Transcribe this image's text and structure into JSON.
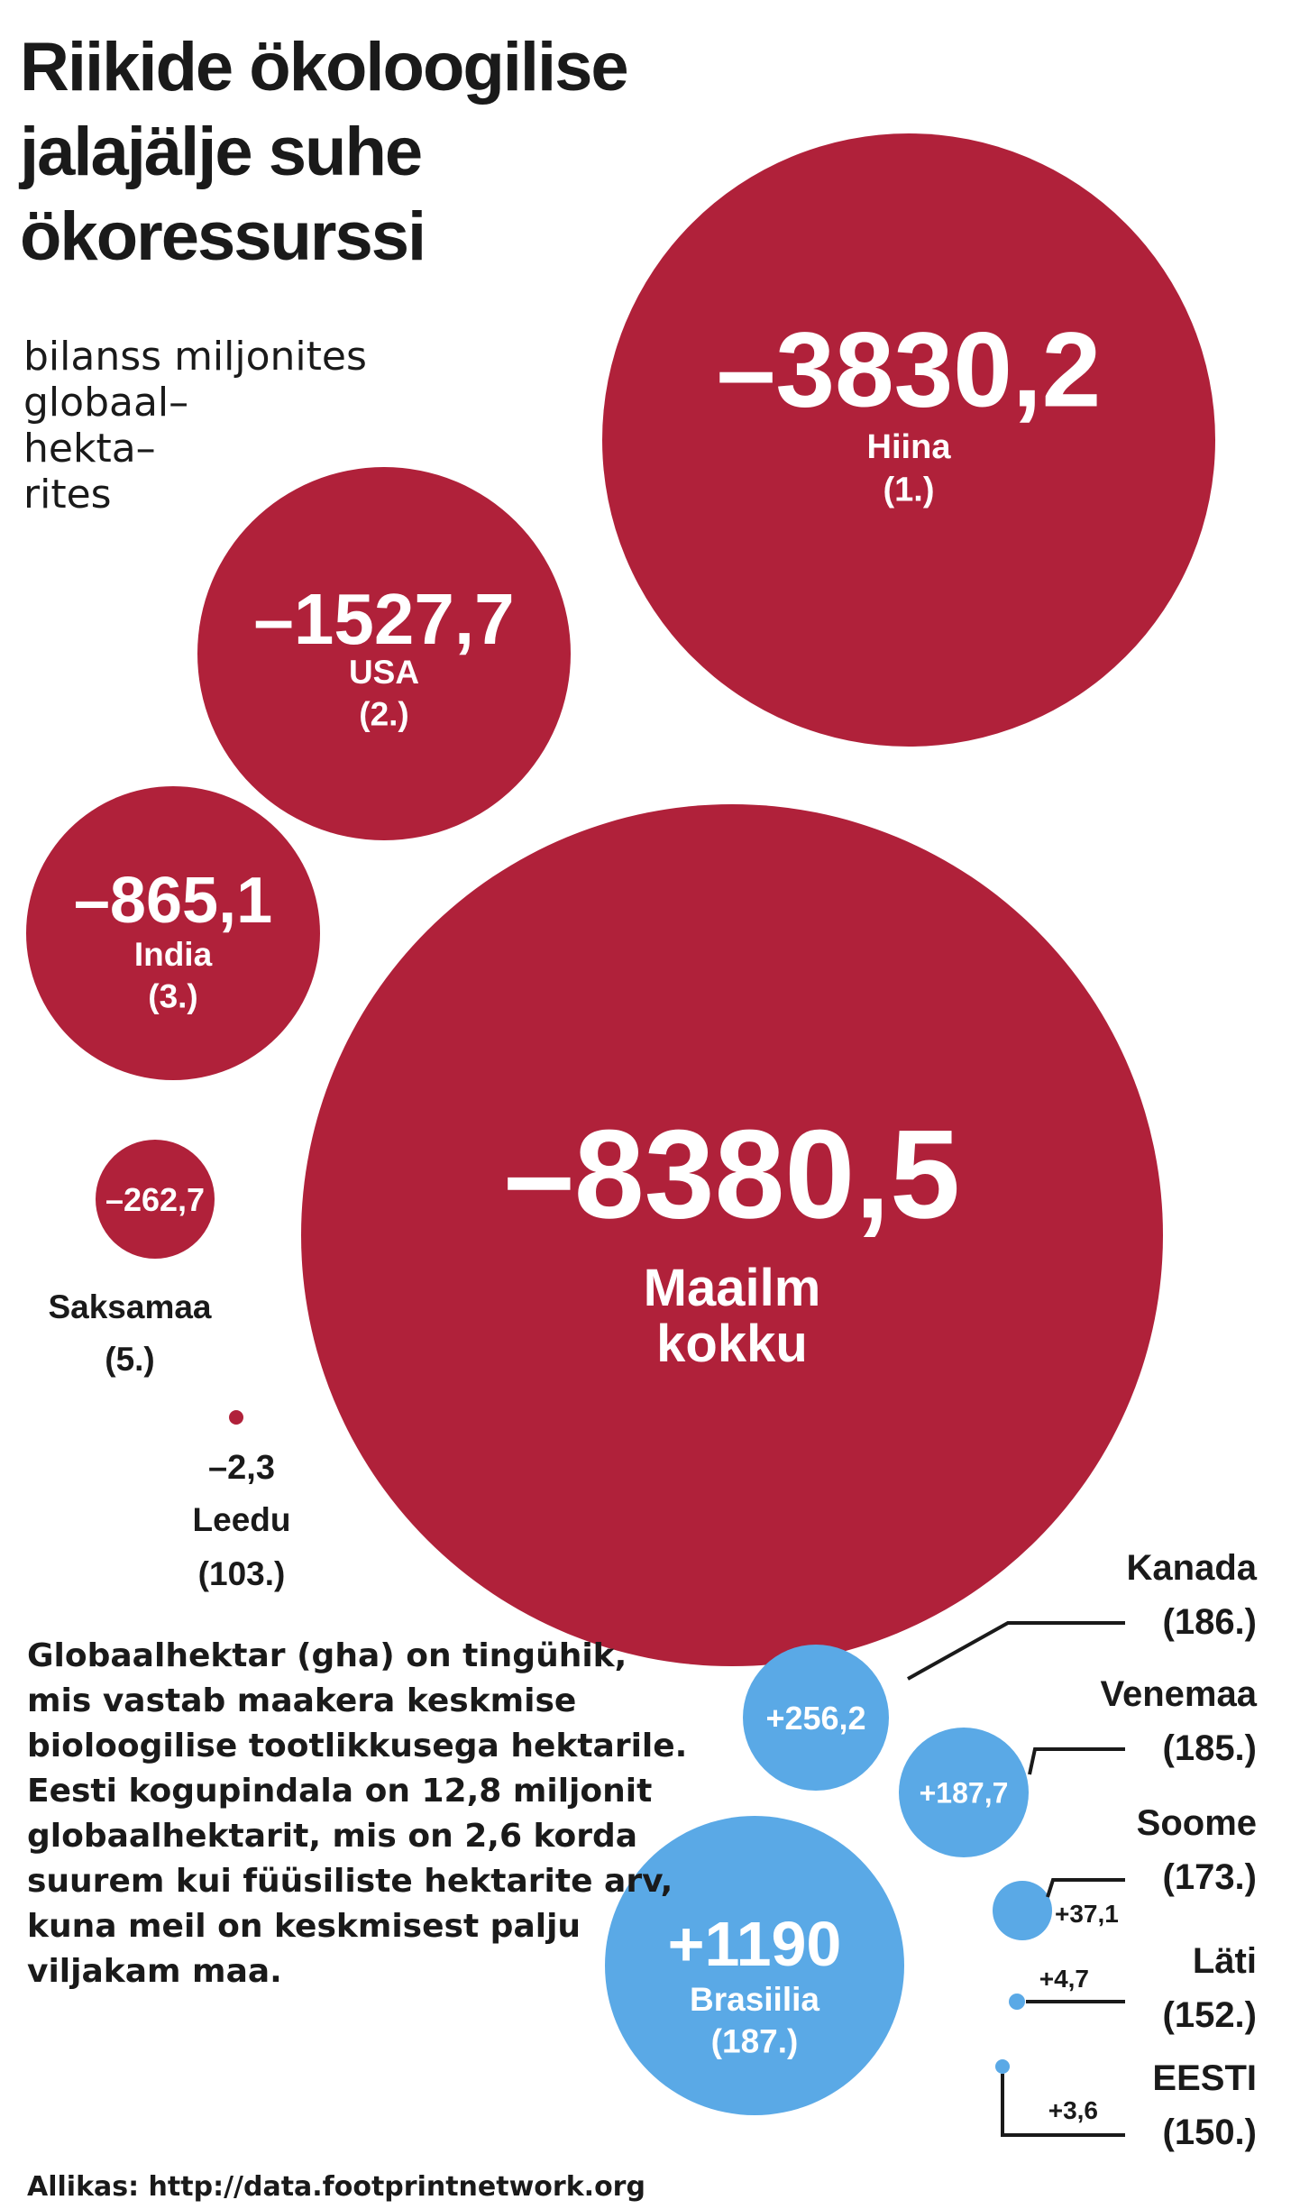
{
  "title": "Riikide ökoloogilise jalajälje suhe ökoressurssi",
  "subtitle": "bilanss miljonites globaal-hektarites",
  "note": "Globaalhektar (gha) on tingühik, mis vastab maakera keskmise bioloogilise tootlikkusega hektarile. Eesti kogupindala on 12,8 miljonit globaalhektarit, mis on 2,6 korda suurem kui füüsiliste hektarite arv, kuna meil on keskmisest palju viljakam maa.",
  "source": "Allikas: http://data.footprintnetwork.org",
  "colors": {
    "deficit": "#b0213a",
    "surplus": "#5aa9e6",
    "text": "#1a1a1a",
    "on_bubble": "#ffffff"
  },
  "chart_data": {
    "type": "bubble",
    "title": "Riikide ökoloogilise jalajälje suhe ökoressurssi",
    "unit": "bilanss miljonites globaalhektarites",
    "points": [
      {
        "name": "Maailm kokku",
        "value": -8380.5,
        "display": "–8380,5",
        "rank": ""
      },
      {
        "name": "Hiina",
        "value": -3830.2,
        "display": "–3830,2",
        "rank": "(1.)"
      },
      {
        "name": "USA",
        "value": -1527.7,
        "display": "–1527,7",
        "rank": "(2.)"
      },
      {
        "name": "India",
        "value": -865.1,
        "display": "–865,1",
        "rank": "(3.)"
      },
      {
        "name": "Saksamaa",
        "value": -262.7,
        "display": "–262,7",
        "rank": "(5.)"
      },
      {
        "name": "Leedu",
        "value": -2.3,
        "display": "–2,3",
        "rank": "(103.)"
      },
      {
        "name": "Brasiilia",
        "value": 1190,
        "display": "+1190",
        "rank": "(187.)"
      },
      {
        "name": "Kanada",
        "value": 256.2,
        "display": "+256,2",
        "rank": "(186.)"
      },
      {
        "name": "Venemaa",
        "value": 187.7,
        "display": "+187,7",
        "rank": "(185.)"
      },
      {
        "name": "Soome",
        "value": 37.1,
        "display": "+37,1",
        "rank": "(173.)"
      },
      {
        "name": "Läti",
        "value": 4.7,
        "display": "+4,7",
        "rank": "(152.)"
      },
      {
        "name": "EESTI",
        "value": 3.6,
        "display": "+3,6",
        "rank": "(150.)"
      }
    ]
  }
}
